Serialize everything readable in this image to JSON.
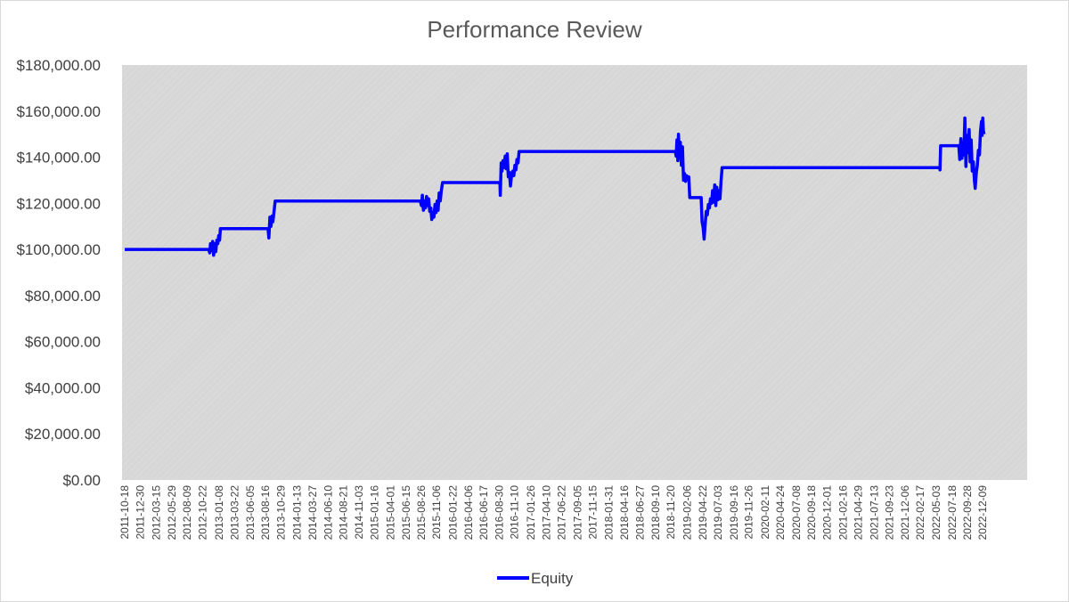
{
  "chart_data": {
    "type": "line",
    "title": "Performance Review",
    "xlabel": "",
    "ylabel": "",
    "ylim": [
      0,
      180000
    ],
    "y_ticks": [
      0,
      20000,
      40000,
      60000,
      80000,
      100000,
      120000,
      140000,
      160000,
      180000
    ],
    "y_tick_labels": [
      "$0.00",
      "$20,000.00",
      "$40,000.00",
      "$60,000.00",
      "$80,000.00",
      "$100,000.00",
      "$120,000.00",
      "$140,000.00",
      "$160,000.00",
      "$180,000.00"
    ],
    "x_tick_labels": [
      "2011-10-18",
      "2011-12-30",
      "2012-03-15",
      "2012-05-29",
      "2012-08-09",
      "2012-10-22",
      "2013-01-08",
      "2013-03-22",
      "2013-06-05",
      "2013-08-16",
      "2013-10-29",
      "2014-01-13",
      "2014-03-27",
      "2014-06-10",
      "2014-08-21",
      "2014-11-03",
      "2015-01-16",
      "2015-04-01",
      "2015-06-15",
      "2015-08-26",
      "2015-11-06",
      "2016-01-22",
      "2016-04-06",
      "2016-06-17",
      "2016-08-30",
      "2016-11-10",
      "2017-01-26",
      "2017-04-10",
      "2017-06-22",
      "2017-09-05",
      "2017-11-15",
      "2018-01-31",
      "2018-04-16",
      "2018-06-27",
      "2018-09-10",
      "2018-11-20",
      "2019-02-06",
      "2019-04-22",
      "2019-07-03",
      "2019-09-16",
      "2019-11-26",
      "2020-02-11",
      "2020-04-24",
      "2020-07-08",
      "2020-09-18",
      "2020-12-01",
      "2021-02-16",
      "2021-04-29",
      "2021-07-13",
      "2021-09-23",
      "2021-12-06",
      "2022-02-17",
      "2022-05-03",
      "2022-07-18",
      "2022-09-28",
      "2022-12-09"
    ],
    "x_tick_rendered": [
      "2011-10-18",
      "2011-12-30",
      "2012-03-15",
      "2012-05-29",
      "2012-08-09",
      "2012-10-22",
      "2013-01-08",
      "2013-03-22",
      "2013-06-05",
      "2013-08-16",
      "2013-10-29",
      "2014-01-13",
      "2014-03-27",
      "2014-06-10",
      "2014-08-21",
      "2014-11-03",
      "2015-01-16",
      "2015-04-01",
      "2015-06-15",
      "2015-08-26",
      "2015-11-06",
      "2016-01-22",
      "2016-04-06",
      "2016-06-17",
      "2016-08-30",
      "2016-11-10",
      "2017-01-26",
      "2017-04-10",
      "2017-06-22",
      "2017-09-05",
      "2017-11-15",
      "2018-01-31",
      "2018-04-16",
      "2018-06-27",
      "2018-09-10",
      "2018-11-20",
      "2019-02-06",
      "2019-04-22",
      "2019-07-03",
      "2019-09-16",
      "2019-11-26",
      "2020-02-11",
      "2020-04-24",
      "2020-07-08",
      "2020-09-18",
      "2020-12-01",
      "2021-02-16",
      "2021-04-29",
      "2021-07-13",
      "2021-09-23",
      "2021-12-06",
      "2022-02-17",
      "2022-05-03",
      "2022-07-18",
      "2022-09-28",
      "2022-12-09"
    ],
    "grid": false,
    "plot_background": "#d9d9d9",
    "legend_position": "bottom",
    "series": [
      {
        "name": "Equity",
        "color": "#0000ff",
        "points": [
          [
            "2011-10-18",
            100000
          ],
          [
            "2012-11-20",
            100000
          ],
          [
            "2012-11-24",
            98500
          ],
          [
            "2012-11-28",
            102500
          ],
          [
            "2012-12-03",
            99500
          ],
          [
            "2012-12-08",
            103500
          ],
          [
            "2012-12-13",
            97500
          ],
          [
            "2012-12-18",
            102500
          ],
          [
            "2012-12-23",
            99000
          ],
          [
            "2012-12-28",
            104000
          ],
          [
            "2013-01-02",
            102500
          ],
          [
            "2013-01-06",
            106000
          ],
          [
            "2013-01-10",
            104000
          ],
          [
            "2013-01-14",
            109000
          ],
          [
            "2013-08-28",
            109000
          ],
          [
            "2013-09-01",
            105000
          ],
          [
            "2013-09-06",
            114000
          ],
          [
            "2013-09-11",
            110000
          ],
          [
            "2013-09-16",
            114500
          ],
          [
            "2013-09-20",
            112000
          ],
          [
            "2013-09-25",
            116000
          ],
          [
            "2013-10-01",
            121000
          ],
          [
            "2015-08-20",
            121000
          ],
          [
            "2015-08-26",
            119000
          ],
          [
            "2015-08-30",
            123500
          ],
          [
            "2015-09-04",
            117000
          ],
          [
            "2015-09-09",
            121000
          ],
          [
            "2015-09-14",
            118000
          ],
          [
            "2015-09-19",
            123000
          ],
          [
            "2015-09-24",
            119000
          ],
          [
            "2015-09-29",
            122000
          ],
          [
            "2015-10-04",
            116500
          ],
          [
            "2015-10-09",
            118000
          ],
          [
            "2015-10-14",
            113000
          ],
          [
            "2015-10-19",
            116000
          ],
          [
            "2015-10-24",
            114000
          ],
          [
            "2015-10-29",
            119500
          ],
          [
            "2015-11-03",
            116000
          ],
          [
            "2015-11-08",
            121000
          ],
          [
            "2015-11-13",
            117000
          ],
          [
            "2015-11-18",
            124500
          ],
          [
            "2015-11-23",
            121000
          ],
          [
            "2015-11-28",
            125500
          ],
          [
            "2015-12-04",
            129000
          ],
          [
            "2016-09-01",
            129000
          ],
          [
            "2016-09-03",
            123500
          ],
          [
            "2016-09-07",
            137500
          ],
          [
            "2016-09-11",
            134000
          ],
          [
            "2016-09-16",
            138500
          ],
          [
            "2016-09-21",
            135500
          ],
          [
            "2016-09-26",
            140500
          ],
          [
            "2016-10-01",
            135000
          ],
          [
            "2016-10-06",
            141500
          ],
          [
            "2016-10-11",
            131500
          ],
          [
            "2016-10-16",
            133500
          ],
          [
            "2016-10-21",
            127500
          ],
          [
            "2016-10-26",
            132000
          ],
          [
            "2016-11-01",
            134000
          ],
          [
            "2016-11-06",
            132000
          ],
          [
            "2016-11-11",
            136500
          ],
          [
            "2016-11-16",
            134500
          ],
          [
            "2016-11-21",
            139000
          ],
          [
            "2016-11-26",
            137500
          ],
          [
            "2016-12-01",
            142500
          ],
          [
            "2018-12-12",
            142500
          ],
          [
            "2018-12-16",
            140500
          ],
          [
            "2018-12-20",
            147500
          ],
          [
            "2018-12-24",
            138500
          ],
          [
            "2018-12-27",
            150000
          ],
          [
            "2019-01-01",
            140000
          ],
          [
            "2019-01-05",
            146500
          ],
          [
            "2019-01-10",
            136500
          ],
          [
            "2019-01-15",
            144500
          ],
          [
            "2019-01-20",
            130000
          ],
          [
            "2019-01-25",
            133000
          ],
          [
            "2019-01-30",
            129500
          ],
          [
            "2019-02-04",
            132000
          ],
          [
            "2019-02-09",
            130500
          ],
          [
            "2019-02-14",
            131500
          ],
          [
            "2019-02-19",
            122500
          ],
          [
            "2019-04-14",
            122500
          ],
          [
            "2019-04-18",
            112000
          ],
          [
            "2019-04-23",
            109500
          ],
          [
            "2019-04-28",
            104500
          ],
          [
            "2019-05-03",
            111000
          ],
          [
            "2019-05-08",
            116500
          ],
          [
            "2019-05-13",
            115000
          ],
          [
            "2019-05-18",
            119500
          ],
          [
            "2019-05-23",
            118000
          ],
          [
            "2019-05-28",
            122000
          ],
          [
            "2019-06-02",
            120000
          ],
          [
            "2019-06-07",
            125500
          ],
          [
            "2019-06-12",
            120500
          ],
          [
            "2019-06-17",
            128000
          ],
          [
            "2019-06-22",
            119000
          ],
          [
            "2019-06-27",
            127000
          ],
          [
            "2019-07-02",
            121500
          ],
          [
            "2019-07-07",
            125500
          ],
          [
            "2019-07-12",
            122000
          ],
          [
            "2019-07-17",
            129500
          ],
          [
            "2019-07-22",
            135500
          ],
          [
            "2022-05-18",
            135500
          ],
          [
            "2022-05-21",
            134500
          ],
          [
            "2022-05-24",
            145000
          ],
          [
            "2022-08-18",
            145000
          ],
          [
            "2022-08-23",
            139000
          ],
          [
            "2022-08-28",
            148000
          ],
          [
            "2022-09-02",
            139500
          ],
          [
            "2022-09-07",
            146000
          ],
          [
            "2022-09-11",
            141000
          ],
          [
            "2022-09-16",
            157000
          ],
          [
            "2022-09-21",
            136000
          ],
          [
            "2022-09-26",
            149500
          ],
          [
            "2022-10-01",
            142000
          ],
          [
            "2022-10-06",
            152000
          ],
          [
            "2022-10-11",
            138000
          ],
          [
            "2022-10-16",
            147500
          ],
          [
            "2022-10-21",
            134000
          ],
          [
            "2022-10-26",
            138000
          ],
          [
            "2022-10-31",
            130000
          ],
          [
            "2022-11-04",
            126500
          ],
          [
            "2022-11-09",
            133000
          ],
          [
            "2022-11-14",
            136500
          ],
          [
            "2022-11-19",
            143000
          ],
          [
            "2022-11-24",
            141000
          ],
          [
            "2022-11-29",
            151000
          ],
          [
            "2022-12-04",
            155500
          ],
          [
            "2022-12-07",
            149500
          ],
          [
            "2022-12-10",
            157000
          ],
          [
            "2022-12-13",
            151500
          ],
          [
            "2022-12-16",
            150000
          ]
        ]
      }
    ]
  }
}
